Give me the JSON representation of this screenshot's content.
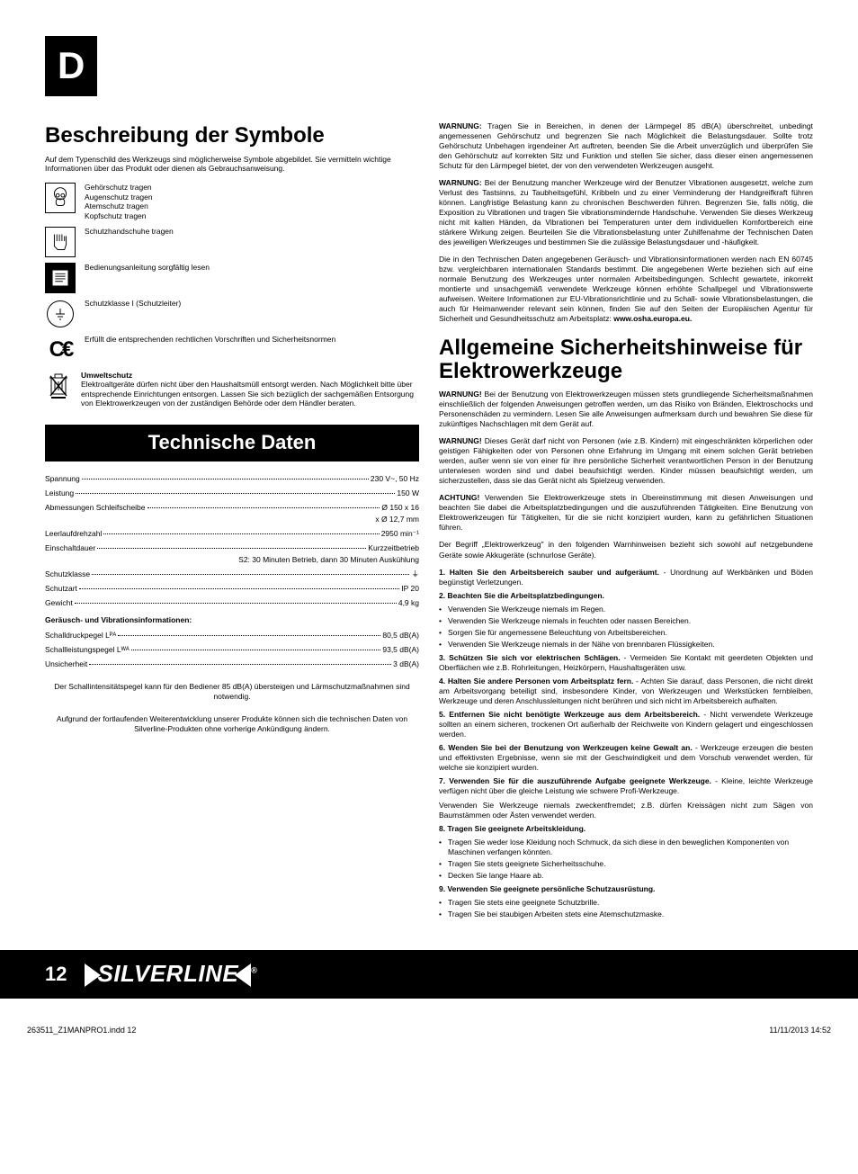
{
  "lang_badge": "D",
  "h1": "Beschreibung der Symbole",
  "intro": "Auf dem Typenschild des Werkzeugs sind möglicherweise Symbole abgebildet. Sie vermitteln wichtige Informationen über das Produkt oder dienen als Gebrauchsanweisung.",
  "symbols": [
    {
      "lines": [
        "Gehörschutz tragen",
        "Augenschutz tragen",
        "Atemschutz tragen",
        "Kopfschutz tragen"
      ]
    },
    {
      "lines": [
        "Schutzhandschuhe tragen"
      ]
    },
    {
      "lines": [
        "Bedienungsanleitung sorgfältig lesen"
      ]
    },
    {
      "lines": [
        "Schutzklasse I (Schutzleiter)"
      ]
    },
    {
      "lines": [
        "Erfüllt die entsprechenden rechtlichen Vorschriften und Sicherheitsnormen"
      ]
    },
    {
      "title": "Umweltschutz",
      "lines": [
        "Elektroaltgeräte dürfen nicht über den Haushaltsmüll entsorgt werden. Nach Möglichkeit bitte über entsprechende Einrichtungen entsorgen. Lassen Sie sich bezüglich der sachgemäßen Entsorgung von Elektrowerkzeugen von der zuständigen Behörde oder dem Händler beraten."
      ]
    }
  ],
  "tech_header": "Technische Daten",
  "specs": [
    {
      "label": "Spannung",
      "value": "230 V~, 50 Hz"
    },
    {
      "label": "Leistung",
      "value": "150 W"
    },
    {
      "label": "Abmessungen Schleifscheibe",
      "value": "Ø 150 x 16",
      "sub": "x Ø 12,7 mm"
    },
    {
      "label": "Leerlaufdrehzahl",
      "value": "2950 min⁻¹"
    },
    {
      "label": "Einschaltdauer",
      "value": "Kurzzeitbetrieb",
      "sub": "S2: 30 Minuten Betrieb, dann 30 Minuten Auskühlung"
    },
    {
      "label": "Schutzklasse",
      "value": "⏚"
    },
    {
      "label": "Schutzart",
      "value": "IP 20"
    },
    {
      "label": "Gewicht",
      "value": "4,9 kg"
    }
  ],
  "noise_header": "Geräusch- und Vibrationsinformationen:",
  "noise_specs": [
    {
      "label": "Schalldruckpegel Lᴾᴬ",
      "value": "80,5 dB(A)"
    },
    {
      "label": "Schallleistungspegel Lᵂᴬ",
      "value": "93,5 dB(A)"
    },
    {
      "label": "Unsicherheit",
      "value": "3 dB(A)"
    }
  ],
  "tech_note1": "Der Schallintensitätspegel kann für den Bediener 85 dB(A) übersteigen und Lärmschutzmaßnahmen sind notwendig.",
  "tech_note2": "Aufgrund der fortlaufenden Weiterentwicklung unserer Produkte können sich die technischen Daten von Silverline-Produkten ohne vorherige Ankündigung ändern.",
  "warn1": {
    "bold": "WARNUNG:",
    "text": " Tragen Sie in Bereichen, in denen der Lärmpegel 85 dB(A) überschreitet, unbedingt angemessenen Gehörschutz und begrenzen Sie nach Möglichkeit die Belastungsdauer. Sollte trotz Gehörschutz Unbehagen irgendeiner Art auftreten, beenden Sie die Arbeit unverzüglich und überprüfen Sie den Gehörschutz auf korrekten Sitz und Funktion und stellen Sie sicher, dass dieser einen angemessenen Schutz für den Lärmpegel bietet, der von den verwendeten Werkzeugen ausgeht."
  },
  "warn2": {
    "bold": "WARNUNG:",
    "text": " Bei der Benutzung mancher Werkzeuge wird der Benutzer Vibrationen ausgesetzt, welche zum Verlust des Tastsinns, zu Taubheitsgefühl, Kribbeln und zu einer Verminderung der Handgreifkraft führen können. Langfristige Belastung kann zu chronischen Beschwerden führen. Begrenzen Sie, falls nötig, die Exposition zu Vibrationen und tragen Sie vibrationsmindernde Handschuhe. Verwenden Sie dieses Werkzeug nicht mit kalten Händen, da Vibrationen bei Temperaturen unter dem individuellen Komfortbereich eine stärkere Wirkung zeigen. Beurteilen Sie die Vibrationsbelastung unter Zuhilfenahme der Technischen Daten des jeweiligen Werkzeuges und bestimmen Sie die zulässige Belastungsdauer und -häufigkeit."
  },
  "warn3": "Die in den Technischen Daten angegebenen Geräusch- und Vibrationsinformationen werden nach EN 60745 bzw. vergleichbaren internationalen Standards bestimmt. Die angegebenen Werte beziehen sich auf eine normale Benutzung des Werkzeuges unter normalen Arbeitsbedingungen. Schlecht gewartete, inkorrekt montierte und unsachgemäß verwendete Werkzeuge können erhöhte Schallpegel und Vibrationswerte aufweisen. Weitere Informationen zur EU-Vibrationsrichtlinie und zu Schall- sowie Vibrationsbelastungen, die auch für Heimanwender relevant sein können, finden Sie auf den Seiten der Europäischen Agentur für Sicherheit und Gesundheitsschutz am Arbeitsplatz: ",
  "warn3_bold": "www.osha.europa.eu.",
  "h2": "Allgemeine Sicherheitshinweise für Elektrowerkzeuge",
  "gen_warn1": {
    "bold": "WARNUNG!",
    "text": " Bei der Benutzung von Elektrowerkzeugen müssen stets grundliegende Sicherheitsmaßnahmen einschließlich der folgenden Anweisungen getroffen werden, um das Risiko von Bränden, Elektroschocks und Personenschäden zu vermindern. Lesen Sie alle Anweisungen aufmerksam durch und bewahren Sie diese für zukünftiges Nachschlagen mit dem Gerät auf."
  },
  "gen_warn2": {
    "bold": "WARNUNG!",
    "text": " Dieses Gerät darf nicht von Personen (wie z.B. Kindern) mit eingeschränkten körperlichen oder geistigen Fähigkeiten oder von Personen ohne Erfahrung im Umgang mit einem solchen Gerät betrieben werden, außer wenn sie von einer für ihre persönliche Sicherheit verantwortlichen Person in der Benutzung unterwiesen worden sind und dabei beaufsichtigt werden. Kinder müssen beaufsichtigt werden, um sicherzustellen, dass sie das Gerät nicht als Spielzeug verwenden."
  },
  "gen_warn3": {
    "bold": "ACHTUNG!",
    "text": " Verwenden Sie Elektrowerkzeuge stets in Übereinstimmung mit diesen Anweisungen und beachten Sie dabei die Arbeitsplatzbedingungen und die auszuführenden Tätigkeiten. Eine Benutzung von Elektrowerkzeugen für Tätigkeiten, für die sie nicht konzipiert wurden, kann zu gefährlichen Situationen führen."
  },
  "gen_note": "Der Begriff „Elektrowerkzeug\" in den folgenden Warnhinweisen bezieht sich sowohl auf netzgebundene Geräte sowie Akkugeräte (schnurlose Geräte).",
  "items": [
    {
      "bold": "1. Halten Sie den Arbeitsbereich sauber und aufgeräumt.",
      "text": " - Unordnung auf Werkbänken und Böden begünstigt Verletzungen."
    },
    {
      "bold": "2. Beachten Sie die Arbeitsplatzbedingungen.",
      "bullets": [
        "Verwenden Sie Werkzeuge niemals im Regen.",
        "Verwenden Sie Werkzeuge niemals in feuchten oder nassen Bereichen.",
        "Sorgen Sie für angemessene Beleuchtung von Arbeitsbereichen.",
        "Verwenden Sie Werkzeuge niemals in der Nähe von brennbaren Flüssigkeiten."
      ]
    },
    {
      "bold": "3. Schützen Sie sich vor elektrischen Schlägen.",
      "text": " - Vermeiden Sie Kontakt mit geerdeten Objekten und Oberflächen wie z.B. Rohrleitungen, Heizkörpern, Haushaltsgeräten usw."
    },
    {
      "bold": "4. Halten Sie andere Personen vom Arbeitsplatz fern.",
      "text": " - Achten Sie darauf, dass Personen, die nicht direkt am Arbeitsvorgang beteiligt sind, insbesondere Kinder, von Werkzeugen und Werkstücken fernbleiben, Werkzeuge und deren Anschlussleitungen nicht berühren und sich nicht im Arbeitsbereich aufhalten."
    },
    {
      "bold": "5. Entfernen Sie nicht benötigte Werkzeuge aus dem Arbeitsbereich.",
      "text": " - Nicht verwendete Werkzeuge sollten an einem sicheren, trockenen Ort außerhalb der Reichweite von Kindern gelagert und eingeschlossen werden."
    },
    {
      "bold": "6. Wenden Sie bei der Benutzung von Werkzeugen keine Gewalt an.",
      "text": " - Werkzeuge erzeugen die besten und effektivsten Ergebnisse, wenn sie mit der Geschwindigkeit und dem Vorschub verwendet werden, für welche sie konzipiert wurden."
    },
    {
      "bold": "7. Verwenden Sie für die auszuführende Aufgabe geeignete Werkzeuge.",
      "text": " - Kleine, leichte Werkzeuge verfügen nicht über die gleiche Leistung wie schwere Profi-Werkzeuge.",
      "extra": "Verwenden Sie Werkzeuge niemals zweckentfremdet; z.B. dürfen Kreissägen nicht zum Sägen von Baumstämmen oder Ästen verwendet werden."
    },
    {
      "bold": "8. Tragen Sie geeignete Arbeitskleidung.",
      "bullets": [
        "Tragen Sie weder lose Kleidung noch Schmuck, da sich diese in den beweglichen Komponenten von Maschinen verfangen könnten.",
        "Tragen Sie stets geeignete Sicherheitsschuhe.",
        "Decken Sie lange Haare ab."
      ]
    },
    {
      "bold": "9. Verwenden Sie geeignete persönliche Schutzausrüstung.",
      "bullets": [
        "Tragen Sie stets eine geeignete Schutzbrille.",
        "Tragen Sie bei staubigen Arbeiten stets eine Atemschutzmaske."
      ]
    }
  ],
  "page_num": "12",
  "brand": "SILVERLINE",
  "print_file": "263511_Z1MANPRO1.indd   12",
  "print_date": "11/11/2013   14:52"
}
